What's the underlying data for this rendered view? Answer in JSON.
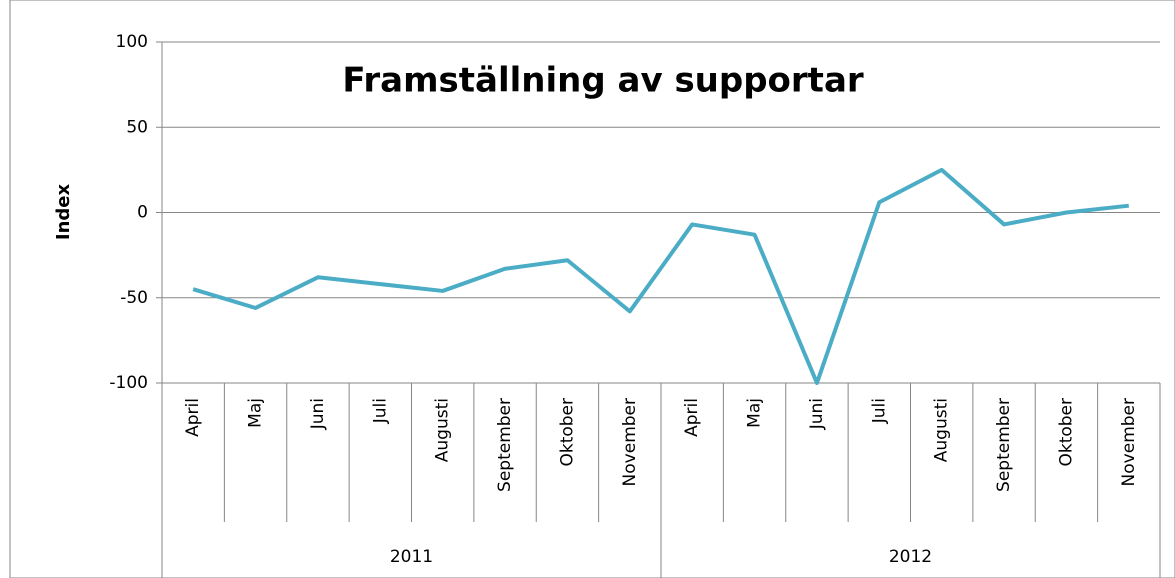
{
  "chart_data": {
    "type": "line",
    "title": "Framställning av supportar",
    "y_label": "Index",
    "category_groups": [
      {
        "label": "2011",
        "categories": [
          "April",
          "Maj",
          "Juni",
          "Juli",
          "Augusti",
          "September",
          "Oktober",
          "November"
        ]
      },
      {
        "label": "2012",
        "categories": [
          "April",
          "Maj",
          "Juni",
          "Juli",
          "Augusti",
          "September",
          "Oktober",
          "November"
        ]
      }
    ],
    "values": [
      -45,
      -56,
      -38,
      -42,
      -46,
      -33,
      -28,
      -58,
      -7,
      -13,
      -100,
      6,
      25,
      -7,
      0,
      4
    ],
    "color": "#4bacc6",
    "ylim": [
      -100,
      100
    ],
    "yticks": [
      -100,
      -50,
      0,
      50,
      100
    ],
    "grid": true
  }
}
